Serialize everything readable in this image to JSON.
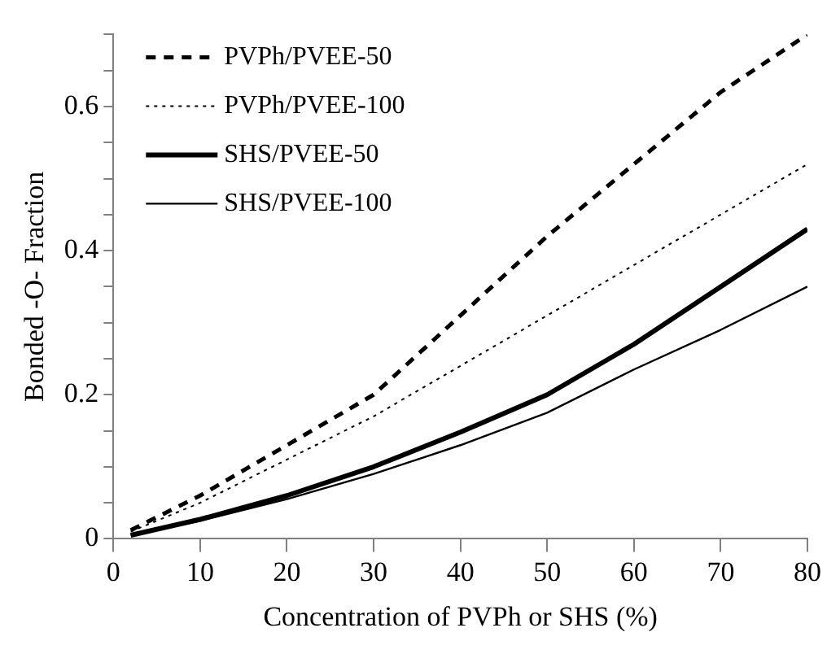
{
  "chart_data": {
    "type": "line",
    "xlabel": "Concentration of PVPh or SHS (%)",
    "ylabel": "Bonded -O- Fraction",
    "x": [
      2,
      10,
      20,
      30,
      40,
      50,
      60,
      70,
      80
    ],
    "series": [
      {
        "name": "PVPh/PVEE-50",
        "color": "#000000",
        "line_style": "dashed",
        "values": [
          0.012,
          0.06,
          0.13,
          0.2,
          0.31,
          0.42,
          0.52,
          0.62,
          0.7
        ]
      },
      {
        "name": "PVPh/PVEE-100",
        "color": "#000000",
        "line_style": "dotted",
        "values": [
          0.01,
          0.05,
          0.11,
          0.17,
          0.24,
          0.31,
          0.38,
          0.45,
          0.52
        ]
      },
      {
        "name": "SHS/PVEE-50",
        "color": "#000000",
        "line_style": "solid",
        "values": [
          0.005,
          0.027,
          0.06,
          0.1,
          0.148,
          0.2,
          0.27,
          0.35,
          0.43
        ]
      },
      {
        "name": "SHS/PVEE-100",
        "color": "#000000",
        "line_style": "solid",
        "values": [
          0.005,
          0.025,
          0.055,
          0.09,
          0.13,
          0.175,
          0.235,
          0.29,
          0.35
        ]
      }
    ],
    "xlim": [
      0,
      80
    ],
    "xticks": [
      0,
      10,
      20,
      30,
      40,
      50,
      60,
      70,
      80
    ],
    "ylim": [
      0,
      0.7
    ],
    "yticks": [
      0,
      {
        "value": 0.05,
        "label": null
      },
      {
        "value": 0.1,
        "label": null
      },
      {
        "value": 0.15,
        "label": null
      },
      0.2,
      {
        "value": 0.25,
        "label": null
      },
      {
        "value": 0.3,
        "label": null
      },
      {
        "value": 0.35,
        "label": null
      },
      0.4,
      {
        "value": 0.45,
        "label": null
      },
      {
        "value": 0.5,
        "label": null
      },
      {
        "value": 0.55,
        "label": null
      },
      0.6,
      {
        "value": 0.65,
        "label": null
      },
      {
        "value": 0.7,
        "label": null
      }
    ],
    "legend": "top left",
    "grid": false,
    "marker": "none"
  }
}
